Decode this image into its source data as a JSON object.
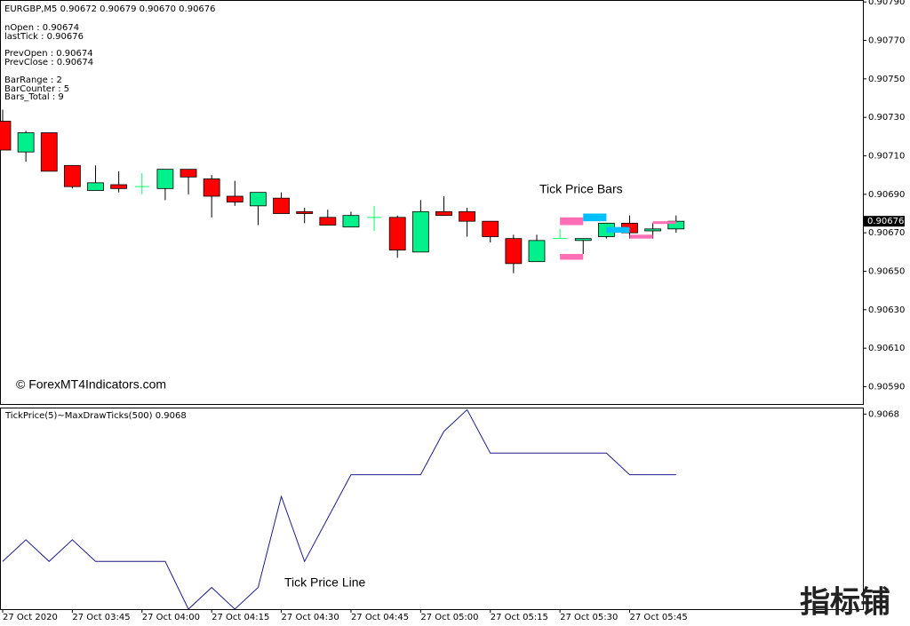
{
  "chart_data": [
    {
      "type": "candlestick",
      "title": "EURGBP,M5  0.90672 0.90679 0.90670 0.90676",
      "info": [
        "nOpen : 0.90674",
        "lastTick : 0.90676",
        "PrevOpen : 0.90674",
        "PrevClose : 0.90674",
        "BarRange : 2",
        "BarCounter : 5",
        "Bars_Total : 9"
      ],
      "annotations": [
        "Tick Price Bars",
        "© ForexMT4Indicators.com"
      ],
      "categories": [
        "27 Oct 2020",
        null,
        null,
        "27 Oct 03:45",
        null,
        null,
        "27 Oct 04:00",
        null,
        null,
        "27 Oct 04:15",
        null,
        null,
        "27 Oct 04:30",
        null,
        null,
        "27 Oct 04:45",
        null,
        null,
        "27 Oct 05:00",
        null,
        null,
        "27 Oct 05:15",
        null,
        null,
        "27 Oct 05:30",
        null,
        null,
        "27 Oct 05:45",
        null,
        null
      ],
      "open": [
        0.90728,
        0.90712,
        0.90722,
        0.90705,
        0.90692,
        0.90695,
        0.90694,
        0.90693,
        0.90703,
        0.90698,
        0.90689,
        0.90684,
        0.90688,
        0.90681,
        0.90678,
        0.90673,
        0.90678,
        0.90678,
        0.9066,
        0.90681,
        0.90681,
        0.90676,
        0.90667,
        0.90655,
        0.90667,
        0.90666,
        0.90668,
        0.90675,
        0.90671,
        0.90672
      ],
      "high": [
        0.90734,
        0.90723,
        0.90722,
        0.90705,
        0.90705,
        0.90702,
        0.90701,
        0.90703,
        0.90703,
        0.907,
        0.90697,
        0.90691,
        0.90691,
        0.90683,
        0.90682,
        0.90681,
        0.90684,
        0.90679,
        0.90687,
        0.90689,
        0.90683,
        0.90676,
        0.90669,
        0.90669,
        0.90672,
        0.90667,
        0.90675,
        0.90679,
        0.90675,
        0.90679
      ],
      "low": [
        0.90713,
        0.90707,
        0.90702,
        0.90693,
        0.90692,
        0.90691,
        0.9069,
        0.90687,
        0.9069,
        0.90678,
        0.90684,
        0.90674,
        0.9068,
        0.90675,
        0.90674,
        0.90673,
        0.90671,
        0.90657,
        0.9066,
        0.90679,
        0.90668,
        0.90665,
        0.90649,
        0.90655,
        0.90667,
        0.90659,
        0.90667,
        0.90667,
        0.90667,
        0.9067
      ],
      "close": [
        0.90713,
        0.90722,
        0.90702,
        0.90694,
        0.90696,
        0.90693,
        0.90694,
        0.90703,
        0.90699,
        0.90689,
        0.90686,
        0.90691,
        0.9068,
        0.9068,
        0.90674,
        0.90679,
        0.90678,
        0.90661,
        0.90681,
        0.90679,
        0.90676,
        0.90668,
        0.90654,
        0.90666,
        0.90667,
        0.90667,
        0.90675,
        0.9067,
        0.90672,
        0.90676
      ],
      "up_color": "#00f08c",
      "down_color": "#ff0000",
      "doji_color": "#00ff66",
      "tick_bars": [
        {
          "index": 24,
          "low": 0.90674,
          "high": 0.90678,
          "color": "#ff6eb4"
        },
        {
          "index": 24,
          "low": 0.90656,
          "high": 0.90659,
          "color": "#ff6eb4"
        },
        {
          "index": 25,
          "low": 0.90676,
          "high": 0.9068,
          "color": "#00bfff"
        },
        {
          "index": 26,
          "low": 0.9067,
          "high": 0.90673,
          "color": "#00bfff"
        },
        {
          "index": 27,
          "low": 0.90667,
          "high": 0.90669,
          "color": "#ff6eb4"
        },
        {
          "index": 28,
          "low": 0.90675,
          "high": 0.90676,
          "color": "#ff6eb4"
        }
      ],
      "current_price": {
        "value": 0.90676,
        "label": "0.90676"
      },
      "ylim": [
        0.90581,
        0.90791
      ],
      "yticks": [
        {
          "value": 0.9079,
          "label": "0.90790"
        },
        {
          "value": 0.9077,
          "label": "0.90770"
        },
        {
          "value": 0.9075,
          "label": "0.90750"
        },
        {
          "value": 0.9073,
          "label": "0.90730"
        },
        {
          "value": 0.9071,
          "label": "0.90710"
        },
        {
          "value": 0.9069,
          "label": "0.90690"
        },
        {
          "value": 0.9067,
          "label": "0.90670"
        },
        {
          "value": 0.9065,
          "label": "0.90650"
        },
        {
          "value": 0.9063,
          "label": "0.90630"
        },
        {
          "value": 0.9061,
          "label": "0.90610"
        },
        {
          "value": 0.9059,
          "label": "0.90590"
        }
      ]
    },
    {
      "type": "line",
      "title": "TickPrice(5)~MaxDrawTicks(500) 0.9068",
      "annotations": [
        "Tick Price Line"
      ],
      "watermark": "指标铺",
      "color": "#1c1c8c",
      "values": [
        0.90646,
        0.90651,
        0.90646,
        0.90651,
        0.90646,
        0.90646,
        0.90646,
        0.90646,
        0.90635,
        0.9064,
        0.90635,
        0.9064,
        0.90661,
        0.90646,
        0.90656,
        0.90666,
        0.90666,
        0.90666,
        0.90666,
        0.90676,
        0.90681,
        0.90671,
        0.90671,
        0.90671,
        0.90671,
        0.90671,
        0.90671,
        0.90666,
        0.90666,
        0.90666
      ],
      "ylim": [
        0.90635,
        0.906815
      ],
      "yticks": [
        {
          "value": 0.9068,
          "label": "0.9068"
        }
      ]
    }
  ]
}
